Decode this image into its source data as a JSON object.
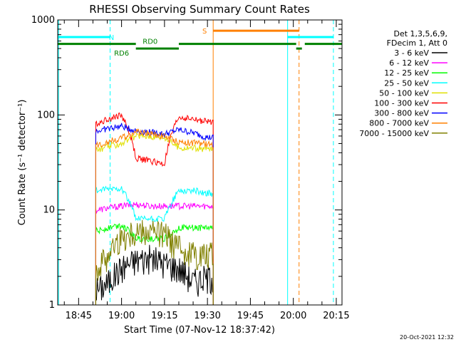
{
  "chart_data": {
    "type": "line",
    "title": "RHESSI Observing Summary Count Rates",
    "xlabel": "Start Time (07-Nov-12 18:37:42)",
    "ylabel": "Count Rate (s⁻¹ detector⁻¹)",
    "y_scale": "log",
    "ylim": [
      1,
      1000
    ],
    "xlim": [
      "18:37:42",
      "20:17:00"
    ],
    "grid": false,
    "legend_position": "right",
    "x_ticks": [
      "18:45",
      "19:00",
      "19:15",
      "19:30",
      "19:45",
      "20:00",
      "20:15"
    ],
    "y_ticks": [
      "1",
      "10",
      "100",
      "1000"
    ],
    "timestamp": "20-Oct-2021 12:32",
    "legend_header": [
      "Det 1,3,5,6,9,",
      "FDecim 1, Att 0"
    ],
    "data_window": [
      "18:51:00",
      "19:32:00"
    ],
    "series": [
      {
        "name": "3 - 6 keV",
        "color": "#000000",
        "x": [
          "18:52",
          "18:55",
          "19:00",
          "19:05",
          "19:10",
          "19:15",
          "19:20",
          "19:25",
          "19:30"
        ],
        "values": [
          1.5,
          1.7,
          2.5,
          3.0,
          3.2,
          2.8,
          2.5,
          1.8,
          2.0
        ]
      },
      {
        "name": "6 - 12 keV",
        "color": "#ff00ff",
        "x": [
          "18:52",
          "18:55",
          "19:00",
          "19:05",
          "19:10",
          "19:15",
          "19:20",
          "19:25",
          "19:30"
        ],
        "values": [
          10,
          10.5,
          11,
          11.5,
          11,
          11,
          11,
          11,
          11
        ]
      },
      {
        "name": "12 - 25 keV",
        "color": "#00ff00",
        "x": [
          "18:52",
          "18:55",
          "19:00",
          "19:05",
          "19:10",
          "19:15",
          "19:20",
          "19:25",
          "19:30"
        ],
        "values": [
          6,
          6.5,
          7,
          5,
          5,
          5,
          6.5,
          6.5,
          6.5
        ]
      },
      {
        "name": "25 - 50 keV",
        "color": "#00ffff",
        "x": [
          "18:52",
          "18:55",
          "19:00",
          "19:05",
          "19:10",
          "19:15",
          "19:20",
          "19:25",
          "19:30"
        ],
        "values": [
          16,
          16.5,
          17,
          8,
          8,
          8,
          16,
          16,
          15
        ]
      },
      {
        "name": "50 - 100 keV",
        "color": "#e0e000",
        "x": [
          "18:52",
          "18:55",
          "19:00",
          "19:05",
          "19:10",
          "19:15",
          "19:20",
          "19:25",
          "19:30"
        ],
        "values": [
          43,
          46,
          50,
          60,
          60,
          58,
          45,
          45,
          44
        ]
      },
      {
        "name": "100 - 300 keV",
        "color": "#ff0000",
        "x": [
          "18:52",
          "18:55",
          "19:00",
          "19:05",
          "19:10",
          "19:15",
          "19:20",
          "19:25",
          "19:30"
        ],
        "values": [
          82,
          90,
          100,
          35,
          33,
          30,
          95,
          90,
          85
        ]
      },
      {
        "name": "300 - 800 keV",
        "color": "#0000ff",
        "x": [
          "18:52",
          "18:55",
          "19:00",
          "19:05",
          "19:10",
          "19:15",
          "19:20",
          "19:25",
          "19:30"
        ],
        "values": [
          68,
          72,
          76,
          68,
          66,
          63,
          70,
          65,
          58
        ]
      },
      {
        "name": "800 - 7000 keV",
        "color": "#ff8000",
        "x": [
          "18:52",
          "18:55",
          "19:00",
          "19:05",
          "19:10",
          "19:15",
          "19:20",
          "19:25",
          "19:30"
        ],
        "values": [
          48,
          52,
          57,
          66,
          64,
          60,
          52,
          51,
          49
        ]
      },
      {
        "name": "7000 - 15000 keV",
        "color": "#808000",
        "x": [
          "18:52",
          "18:55",
          "19:00",
          "19:05",
          "19:10",
          "19:15",
          "19:20",
          "19:25",
          "19:30"
        ],
        "values": [
          2.5,
          3.5,
          5.0,
          6.0,
          6.0,
          5.5,
          4.0,
          3.5,
          3.5
        ]
      }
    ],
    "annotations": {
      "bars": [
        {
          "label": "N",
          "color": "#00ffff",
          "level": 660,
          "segments": [
            [
              "18:37:42",
              "18:56"
            ],
            [
              "19:58",
              "20:14"
            ]
          ]
        },
        {
          "label": "S",
          "color": "#ff8000",
          "level": 770,
          "segments": [
            [
              "19:32",
              "20:02"
            ]
          ]
        },
        {
          "label": "RD0",
          "color": "#008000",
          "level": 560,
          "segments": [
            [
              "18:37:42",
              "19:05"
            ],
            [
              "19:20",
              "20:01"
            ],
            [
              "20:04",
              "20:17"
            ]
          ]
        },
        {
          "label": "RD6",
          "color": "#008000",
          "level": 500,
          "segments": [
            [
              "19:05",
              "19:20"
            ],
            [
              "20:01",
              "20:03"
            ]
          ]
        }
      ],
      "vlines": [
        {
          "label": "",
          "color": "#00ffff",
          "style": "solid",
          "x": "18:38"
        },
        {
          "label": "",
          "color": "#00ffff",
          "style": "dashed",
          "x": "18:56"
        },
        {
          "label": "",
          "color": "#ff8000",
          "style": "solid",
          "x": "19:32"
        },
        {
          "label": "",
          "color": "#00ffff",
          "style": "solid",
          "x": "19:58"
        },
        {
          "label": "",
          "color": "#ff8000",
          "style": "dashed",
          "x": "20:02"
        },
        {
          "label": "",
          "color": "#00ffff",
          "style": "dashed",
          "x": "20:14"
        }
      ]
    }
  }
}
